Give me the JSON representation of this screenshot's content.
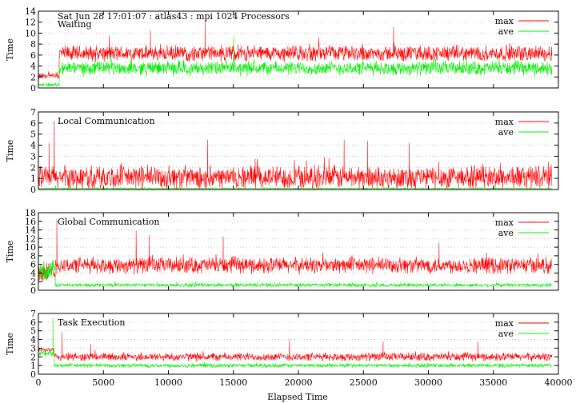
{
  "chart_data": {
    "type": "line",
    "header": "Sat Jun 28 17:01:07 : atlas43 : mpi 1024 Processors",
    "xlabel": "Elapsed Time",
    "xlim": [
      0,
      40000
    ],
    "xticks": [
      0,
      5000,
      10000,
      15000,
      20000,
      25000,
      30000,
      35000,
      40000
    ],
    "x_data_end": 39500,
    "legend_position": "top-right",
    "series_names": [
      "max",
      "ave"
    ],
    "colors": {
      "max": "#ff0000",
      "ave": "#00ee00"
    },
    "grid": "horizontal dotted",
    "panels": [
      {
        "title": "Waiting",
        "ylabel": "Time",
        "ylim": [
          0,
          14
        ],
        "yticks": [
          0,
          2,
          4,
          6,
          8,
          10,
          12,
          14
        ],
        "series": [
          {
            "name": "max",
            "segments": [
              {
                "x": [
                  0,
                  1600
                ],
                "base": 2.1,
                "noise": 0.5
              },
              {
                "x": [
                  1600,
                  39500
                ],
                "base": 6.3,
                "noise": 1.2,
                "spikes": [
                  [
                    8600,
                    10.5
                  ],
                  [
                    12800,
                    12.3
                  ],
                  [
                    27300,
                    11.1
                  ]
                ]
              }
            ]
          },
          {
            "name": "ave",
            "segments": [
              {
                "x": [
                  0,
                  1600
                ],
                "base": 0.6,
                "noise": 0.3
              },
              {
                "x": [
                  1600,
                  39500
                ],
                "base": 3.6,
                "noise": 1.1,
                "spikes": [
                  [
                    15000,
                    9.5
                  ]
                ]
              }
            ]
          }
        ]
      },
      {
        "title": "Local Communication",
        "ylabel": "Time",
        "ylim": [
          0,
          7
        ],
        "yticks": [
          0,
          1,
          2,
          3,
          4,
          5,
          6,
          7
        ],
        "series": [
          {
            "name": "max",
            "segments": [
              {
                "x": [
                  0,
                  39500
                ],
                "base": 1.1,
                "noise": 0.9,
                "spikes": [
                  [
                    800,
                    4.2
                  ],
                  [
                    1200,
                    6.2
                  ],
                  [
                    13000,
                    4.5
                  ],
                  [
                    23500,
                    4.5
                  ],
                  [
                    25300,
                    4.4
                  ],
                  [
                    28500,
                    4.2
                  ]
                ]
              }
            ]
          },
          {
            "name": "ave",
            "segments": [
              {
                "x": [
                  0,
                  39500
                ],
                "base": 0.1,
                "noise": 0.05,
                "spikes": [
                  [
                    1300,
                    0.4
                  ]
                ]
              }
            ]
          }
        ]
      },
      {
        "title": "Global Communication",
        "ylabel": "Time",
        "ylim": [
          0,
          18
        ],
        "yticks": [
          0,
          2,
          4,
          6,
          8,
          10,
          12,
          14,
          16,
          18
        ],
        "series": [
          {
            "name": "max",
            "segments": [
              {
                "x": [
                  0,
                  1300
                ],
                "base": 4.0,
                "noise": 2.0
              },
              {
                "x": [
                  1300,
                  39500
                ],
                "base": 5.8,
                "noise": 1.6,
                "spikes": [
                  [
                    1400,
                    16.3
                  ],
                  [
                    7500,
                    13.8
                  ],
                  [
                    8500,
                    12.8
                  ],
                  [
                    14200,
                    12.5
                  ],
                  [
                    30800,
                    11.0
                  ]
                ]
              }
            ]
          },
          {
            "name": "ave",
            "segments": [
              {
                "x": [
                  0,
                  1300
                ],
                "base": 4.5,
                "noise": 2.0
              },
              {
                "x": [
                  1300,
                  39500
                ],
                "base": 1.2,
                "noise": 0.4
              }
            ]
          }
        ]
      },
      {
        "title": "Task Execution",
        "ylabel": "Time",
        "ylim": [
          0,
          7
        ],
        "yticks": [
          0,
          1,
          2,
          3,
          4,
          5,
          6,
          7
        ],
        "series": [
          {
            "name": "max",
            "segments": [
              {
                "x": [
                  0,
                  1200
                ],
                "base": 2.8,
                "noise": 0.2
              },
              {
                "x": [
                  1200,
                  39500
                ],
                "base": 2.0,
                "noise": 0.4,
                "spikes": [
                  [
                    1800,
                    4.8
                  ],
                  [
                    4000,
                    3.5
                  ],
                  [
                    19300,
                    4.0
                  ],
                  [
                    26500,
                    3.8
                  ],
                  [
                    33800,
                    3.8
                  ]
                ]
              }
            ]
          },
          {
            "name": "ave",
            "segments": [
              {
                "x": [
                  0,
                  1200
                ],
                "base": 2.4,
                "noise": 0.3,
                "spikes": [
                  [
                    1100,
                    6.5
                  ]
                ]
              },
              {
                "x": [
                  1200,
                  39500
                ],
                "base": 1.0,
                "noise": 0.2
              }
            ]
          }
        ]
      }
    ]
  }
}
